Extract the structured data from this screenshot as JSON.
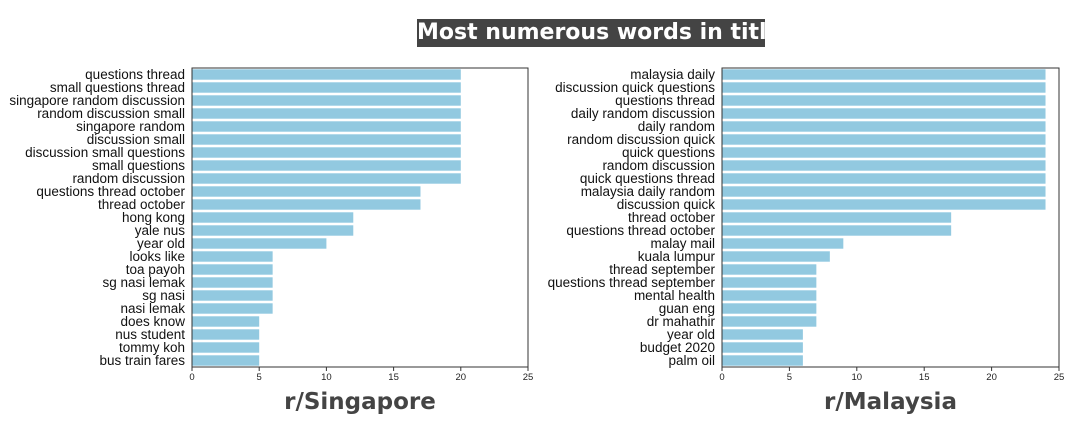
{
  "suptitle": "Most numerous words in title",
  "chart_data": [
    {
      "type": "bar",
      "orientation": "horizontal",
      "xlabel": "r/Singapore",
      "xlim": [
        0,
        25
      ],
      "xticks": [
        0,
        5,
        10,
        15,
        20,
        25
      ],
      "bar_color": "#92c9e0",
      "categories": [
        "questions thread",
        "small questions thread",
        "singapore random discussion",
        "random discussion small",
        "singapore random",
        "discussion small",
        "discussion small questions",
        "small questions",
        "random discussion",
        "questions thread october",
        "thread october",
        "hong kong",
        "yale nus",
        "year old",
        "looks like",
        "toa payoh",
        "sg nasi lemak",
        "sg nasi",
        "nasi lemak",
        "does know",
        "nus student",
        "tommy koh",
        "bus train fares"
      ],
      "values": [
        20,
        20,
        20,
        20,
        20,
        20,
        20,
        20,
        20,
        17,
        17,
        12,
        12,
        10,
        6,
        6,
        6,
        6,
        6,
        5,
        5,
        5,
        5
      ]
    },
    {
      "type": "bar",
      "orientation": "horizontal",
      "xlabel": "r/Malaysia",
      "xlim": [
        0,
        25
      ],
      "xticks": [
        0,
        5,
        10,
        15,
        20,
        25
      ],
      "bar_color": "#92c9e0",
      "categories": [
        "malaysia daily",
        "discussion quick questions",
        "questions thread",
        "daily random discussion",
        "daily random",
        "random discussion quick",
        "quick questions",
        "random discussion",
        "quick questions thread",
        "malaysia daily random",
        "discussion quick",
        "thread october",
        "questions thread october",
        "malay mail",
        "kuala lumpur",
        "thread september",
        "questions thread september",
        "mental health",
        "guan eng",
        "dr mahathir",
        "year old",
        "budget 2020",
        "palm oil"
      ],
      "values": [
        24,
        24,
        24,
        24,
        24,
        24,
        24,
        24,
        24,
        24,
        24,
        17,
        17,
        9,
        8,
        7,
        7,
        7,
        7,
        7,
        6,
        6,
        6
      ]
    }
  ]
}
